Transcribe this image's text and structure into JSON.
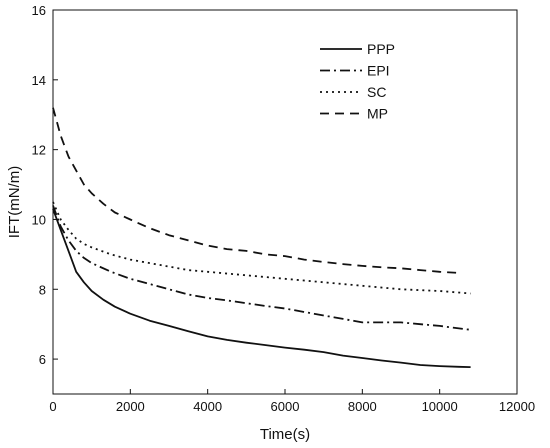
{
  "chart_data": {
    "type": "line",
    "title": "",
    "xlabel": "Time(s)",
    "ylabel": "IFT(mN/m)",
    "xlim": [
      0,
      12000
    ],
    "ylim": [
      5,
      16
    ],
    "grid": false,
    "legend_position": "top-right",
    "x_ticks": [
      0,
      2000,
      4000,
      6000,
      8000,
      10000,
      12000
    ],
    "y_ticks": [
      6,
      8,
      10,
      12,
      14,
      16
    ],
    "x_tick_labels": [
      "0",
      "2000",
      "4000",
      "6000",
      "8000",
      "10000",
      "12000"
    ],
    "y_tick_labels": [
      "6",
      "8",
      "10",
      "12",
      "14",
      "16"
    ],
    "series": [
      {
        "name": "PPP",
        "dash": "solid",
        "x": [
          0,
          200,
          400,
          600,
          800,
          1000,
          1300,
          1600,
          2000,
          2500,
          3000,
          3500,
          4000,
          4500,
          5000,
          5500,
          6000,
          6500,
          7000,
          7500,
          8000,
          8500,
          9000,
          9500,
          10000,
          10500,
          10800
        ],
        "y": [
          10.3,
          9.7,
          9.1,
          8.5,
          8.2,
          7.95,
          7.7,
          7.5,
          7.3,
          7.1,
          6.95,
          6.8,
          6.65,
          6.55,
          6.47,
          6.4,
          6.33,
          6.27,
          6.2,
          6.1,
          6.03,
          5.96,
          5.9,
          5.83,
          5.8,
          5.78,
          5.77
        ]
      },
      {
        "name": "EPI",
        "dash": "dashdot",
        "x": [
          0,
          200,
          400,
          600,
          800,
          1000,
          1500,
          2000,
          2500,
          3000,
          3500,
          4000,
          4500,
          5000,
          5500,
          6000,
          6500,
          7000,
          7500,
          8000,
          8500,
          9000,
          9500,
          10000,
          10500,
          10800
        ],
        "y": [
          10.4,
          9.8,
          9.4,
          9.1,
          8.9,
          8.75,
          8.5,
          8.3,
          8.15,
          8.0,
          7.85,
          7.75,
          7.68,
          7.6,
          7.52,
          7.45,
          7.35,
          7.25,
          7.15,
          7.05,
          7.05,
          7.05,
          7.0,
          6.95,
          6.88,
          6.84
        ]
      },
      {
        "name": "SC",
        "dash": "dotted",
        "x": [
          0,
          200,
          400,
          600,
          800,
          1000,
          1500,
          2000,
          2500,
          3000,
          3500,
          4000,
          5000,
          6000,
          7000,
          8000,
          9000,
          10000,
          10800
        ],
        "y": [
          10.5,
          10.0,
          9.7,
          9.45,
          9.3,
          9.2,
          9.0,
          8.85,
          8.75,
          8.65,
          8.55,
          8.5,
          8.4,
          8.3,
          8.2,
          8.1,
          8.0,
          7.95,
          7.88
        ]
      },
      {
        "name": "MP",
        "dash": "dashed",
        "x": [
          0,
          200,
          400,
          600,
          800,
          1000,
          1300,
          1600,
          2000,
          2500,
          3000,
          3500,
          4000,
          4500,
          5000,
          5500,
          6000,
          6500,
          7000,
          7500,
          8000,
          8500,
          9000,
          9500,
          10000,
          10500
        ],
        "y": [
          13.2,
          12.4,
          11.8,
          11.4,
          11.0,
          10.75,
          10.45,
          10.2,
          10.0,
          9.75,
          9.55,
          9.4,
          9.25,
          9.15,
          9.1,
          9.0,
          8.95,
          8.85,
          8.78,
          8.72,
          8.67,
          8.63,
          8.6,
          8.55,
          8.5,
          8.47
        ]
      }
    ]
  }
}
